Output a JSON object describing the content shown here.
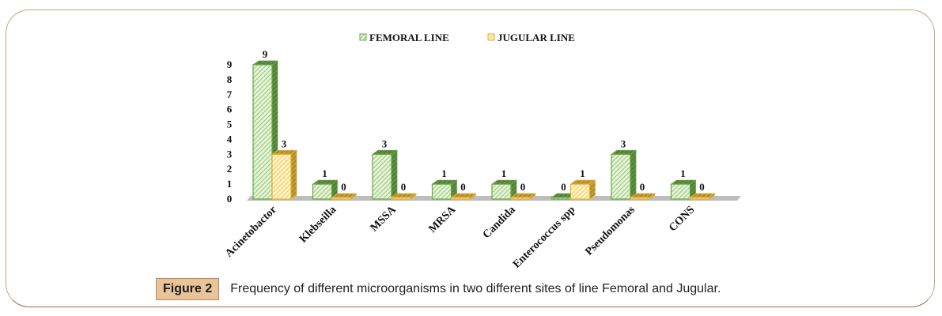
{
  "figure": {
    "tag": "Figure 2",
    "caption": "Frequency of different microorganisms in two different sites of line Femoral and Jugular."
  },
  "chart_data": {
    "type": "bar",
    "style": "3d-clustered-column",
    "title": "",
    "xlabel": "",
    "ylabel": "",
    "ylim": [
      0,
      9
    ],
    "yticks": [
      "0",
      "1",
      "2",
      "3",
      "4",
      "5",
      "6",
      "7",
      "8",
      "9"
    ],
    "grid": false,
    "legend_position": "top-center",
    "categories": [
      "Acinetobactor",
      "Klebseilla",
      "MSSA",
      "MRSA",
      "Candida",
      "Enterococcus spp",
      "Pseudomonas",
      "CONS"
    ],
    "series": [
      {
        "name": "FEMORAL LINE",
        "color": "#8dc26b",
        "values": [
          9,
          1,
          3,
          1,
          1,
          0,
          3,
          1
        ]
      },
      {
        "name": "JUGULAR LINE",
        "color": "#f2cb4a",
        "values": [
          3,
          0,
          0,
          0,
          0,
          1,
          0,
          0
        ]
      }
    ]
  }
}
